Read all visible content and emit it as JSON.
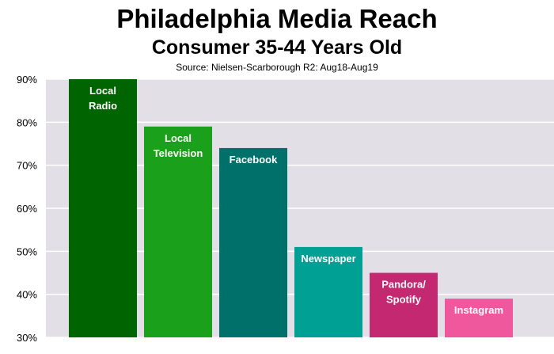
{
  "chart_data": {
    "type": "bar",
    "title": "Philadelphia Media Reach",
    "subtitle": "Consumer 35-44 Years Old",
    "source": "Source: Nielsen-Scarborough R2: Aug18-Aug19",
    "categories": [
      "Local Radio",
      "Local Television",
      "Facebook",
      "Newspaper",
      "Pandora/ Spotify",
      "Instagram"
    ],
    "bar_labels": [
      [
        "Local",
        "Radio"
      ],
      [
        "Local",
        "Television"
      ],
      [
        "Facebook"
      ],
      [
        "Newspaper"
      ],
      [
        "Pandora/",
        "Spotify"
      ],
      [
        "Instagram"
      ]
    ],
    "values": [
      90,
      79,
      74,
      51,
      45,
      39
    ],
    "colors": [
      "#006400",
      "#1aa01a",
      "#00706a",
      "#00a095",
      "#c42870",
      "#f0589e"
    ],
    "ylim": [
      30,
      90
    ],
    "yticks": [
      "30%",
      "40%",
      "50%",
      "60%",
      "70%",
      "80%",
      "90%"
    ],
    "ytick_values": [
      30,
      40,
      50,
      60,
      70,
      80,
      90
    ],
    "grid": true,
    "plot_background": "#e2e0e6",
    "grid_color": "#ffffff"
  }
}
